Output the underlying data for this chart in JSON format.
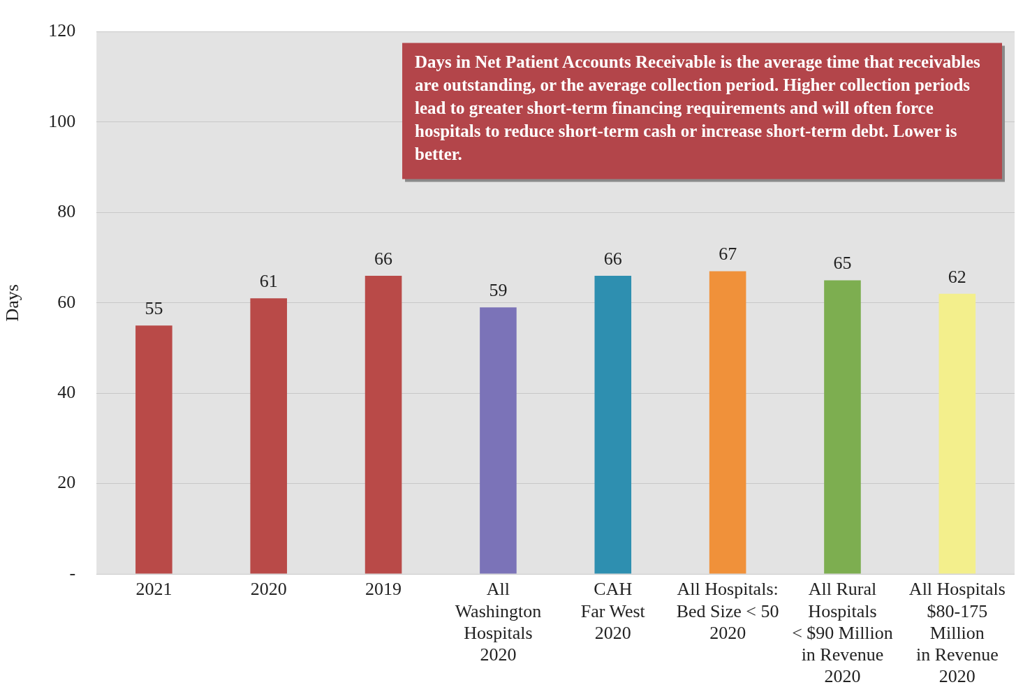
{
  "chart_data": {
    "type": "bar",
    "ylabel": "Days",
    "categories": [
      "2021",
      "2020",
      "2019",
      "All\nWashington\nHospitals\n2020",
      "CAH\nFar West\n2020",
      "All Hospitals:\nBed Size < 50\n2020",
      "All Rural\nHospitals\n< $90 Million\nin Revenue\n2020",
      "All Hospitals\n$80-175\nMillion\nin Revenue\n2020"
    ],
    "values": [
      55,
      61,
      66,
      59,
      66,
      67,
      65,
      62
    ],
    "colors": [
      "#b94a48",
      "#b94a48",
      "#b94a48",
      "#7b73b8",
      "#2e8fb0",
      "#f0913a",
      "#7dae50",
      "#f3ef8c"
    ],
    "ylim": [
      0,
      120
    ],
    "yticks": [
      {
        "value": 0,
        "label": "-"
      },
      20,
      40,
      60,
      80,
      100,
      120
    ],
    "grid": "y",
    "data_labels": true,
    "annotations": [
      "Days in Net Patient Accounts Receivable is the average time that receivables are outstanding, or the average collection period. Higher collection periods lead to greater short-term financing requirements and will often force hospitals to reduce short-term cash or increase short-term debt. Lower is better."
    ]
  }
}
